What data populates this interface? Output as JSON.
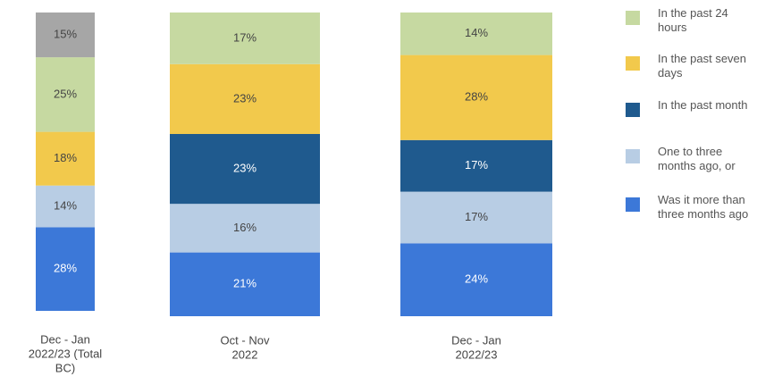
{
  "chart_data": {
    "type": "stacked-bar",
    "categories": [
      [
        "Dec - Jan",
        "2022/23 (Total",
        "BC)"
      ],
      [
        "Oct - Nov",
        "2022"
      ],
      [
        "Dec - Jan",
        "2022/23"
      ]
    ],
    "series": [
      {
        "name": "Was it more than three months ago",
        "color": "#3c78d8",
        "values": [
          28,
          21,
          24
        ],
        "value_labels": [
          "28%",
          "21%",
          "24%"
        ]
      },
      {
        "name": "One to three months ago, or",
        "color": "#b8cde4",
        "values": [
          14,
          16,
          17
        ],
        "value_labels": [
          "14%",
          "16%",
          "17%"
        ]
      },
      {
        "name": "In the past month",
        "color": "#1f5a8e",
        "values": [
          null,
          23,
          17
        ],
        "value_labels": [
          null,
          "23%",
          "17%"
        ]
      },
      {
        "name": "In the past seven days",
        "color": "#f2c94c",
        "values": [
          18,
          23,
          28
        ],
        "value_labels": [
          "18%",
          "23%",
          "28%"
        ]
      },
      {
        "name": "In the past 24 hours",
        "color": "#c6d9a1",
        "values": [
          25,
          17,
          14
        ],
        "value_labels": [
          "25%",
          "17%",
          "14%"
        ]
      },
      {
        "color": "#a6a6a6",
        "values": [
          15,
          null,
          null
        ],
        "value_labels": [
          "15%",
          null,
          null
        ]
      }
    ]
  }
}
